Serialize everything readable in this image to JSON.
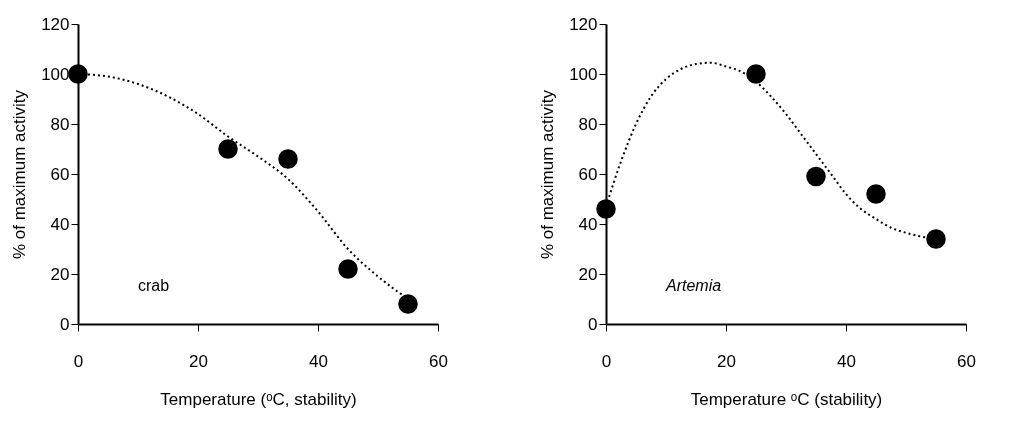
{
  "chart_data": [
    {
      "type": "scatter",
      "xlabel": "Temperature (ᵒC, stability)",
      "ylabel": "% of maximum activity",
      "annotations": [
        "crab"
      ],
      "x": [
        0,
        25,
        35,
        45,
        55
      ],
      "series": [
        {
          "color": "#000000",
          "marker": "circle",
          "values": [
            100,
            70,
            66,
            22,
            8
          ]
        },
        {
          "type": "line",
          "color": "#000000",
          "line_style": "dotted",
          "marker": "none",
          "x": [
            0,
            5,
            10,
            15,
            20,
            25,
            30,
            35,
            40,
            45,
            50,
            55
          ],
          "values": [
            100,
            99,
            96,
            91,
            84,
            75,
            67,
            58,
            45,
            30,
            19,
            10
          ]
        }
      ],
      "xlim": [
        0,
        60
      ],
      "xticks": [
        0,
        20,
        40,
        60
      ],
      "ylim": [
        0,
        120
      ],
      "yticks": [
        0,
        20,
        40,
        60,
        80,
        100,
        120
      ],
      "grid": false
    },
    {
      "type": "scatter",
      "xlabel": "Temperature ᵒC (stability)",
      "ylabel": "% of maximum activity",
      "annotations": [
        "Artemia"
      ],
      "x": [
        0,
        25,
        35,
        45,
        55
      ],
      "series": [
        {
          "color": "#000000",
          "marker": "circle",
          "values": [
            46,
            100,
            59,
            52,
            34
          ]
        },
        {
          "type": "line",
          "color": "#000000",
          "line_style": "dotted",
          "marker": "none",
          "x": [
            0,
            2.5,
            5,
            7.5,
            10,
            12.5,
            15,
            17.5,
            20,
            22.5,
            25,
            27.5,
            30,
            32.5,
            35,
            37.5,
            40,
            42.5,
            45,
            47.5,
            50,
            52.5,
            55
          ],
          "values": [
            47,
            65,
            80,
            91,
            98,
            102,
            104,
            104.5,
            103,
            101,
            97,
            91,
            84,
            76,
            68,
            60,
            52,
            46,
            42,
            38.5,
            36.5,
            35,
            34
          ]
        }
      ],
      "xlim": [
        0,
        60
      ],
      "xticks": [
        0,
        20,
        40,
        60
      ],
      "ylim": [
        0,
        120
      ],
      "yticks": [
        0,
        20,
        40,
        60,
        80,
        100,
        120
      ],
      "grid": false
    }
  ]
}
